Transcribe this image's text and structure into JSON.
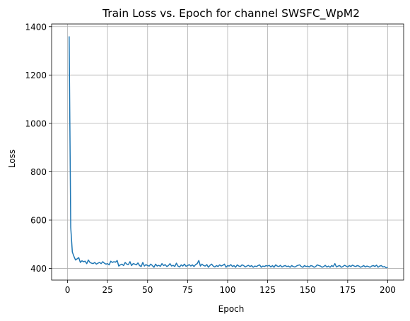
{
  "chart_data": {
    "type": "line",
    "title": "Train Loss vs. Epoch for channel SWSFC_WpM2",
    "xlabel": "Epoch",
    "ylabel": "Loss",
    "xlim": [
      -9.95,
      209.95
    ],
    "ylim": [
      352,
      1411
    ],
    "x_ticks": [
      0,
      25,
      50,
      75,
      100,
      125,
      150,
      175,
      200
    ],
    "y_ticks": [
      400,
      600,
      800,
      1000,
      1200,
      1400
    ],
    "grid": true,
    "series_color": "#1f77b4",
    "series": [
      {
        "x": [
          1,
          2,
          3,
          4,
          5,
          6,
          7,
          8,
          9,
          10,
          11,
          12,
          13,
          14,
          15,
          16,
          17,
          18,
          19,
          20,
          21,
          22,
          23,
          24,
          25,
          26,
          27,
          28,
          29,
          30,
          31,
          32,
          33,
          34,
          35,
          36,
          37,
          38,
          39,
          40,
          41,
          42,
          43,
          44,
          45,
          46,
          47,
          48,
          49,
          50,
          51,
          52,
          53,
          54,
          55,
          56,
          57,
          58,
          59,
          60,
          61,
          62,
          63,
          64,
          65,
          66,
          67,
          68,
          69,
          70,
          71,
          72,
          73,
          74,
          75,
          76,
          77,
          78,
          79,
          80,
          81,
          82,
          83,
          84,
          85,
          86,
          87,
          88,
          89,
          90,
          91,
          92,
          93,
          94,
          95,
          96,
          97,
          98,
          99,
          100,
          101,
          102,
          103,
          104,
          105,
          106,
          107,
          108,
          109,
          110,
          111,
          112,
          113,
          114,
          115,
          116,
          117,
          118,
          119,
          120,
          121,
          122,
          123,
          124,
          125,
          126,
          127,
          128,
          129,
          130,
          131,
          132,
          133,
          134,
          135,
          136,
          137,
          138,
          139,
          140,
          141,
          142,
          143,
          144,
          145,
          146,
          147,
          148,
          149,
          150,
          151,
          152,
          153,
          154,
          155,
          156,
          157,
          158,
          159,
          160,
          161,
          162,
          163,
          164,
          165,
          166,
          167,
          168,
          169,
          170,
          171,
          172,
          173,
          174,
          175,
          176,
          177,
          178,
          179,
          180,
          181,
          182,
          183,
          184,
          185,
          186,
          187,
          188,
          189,
          190,
          191,
          192,
          193,
          194,
          195,
          196,
          197,
          198,
          199,
          200
        ],
        "y": [
          1360,
          570,
          468,
          450,
          435,
          440,
          445,
          425,
          432,
          428,
          430,
          420,
          435,
          425,
          422,
          420,
          425,
          418,
          422,
          425,
          420,
          428,
          422,
          418,
          420,
          415,
          430,
          425,
          428,
          426,
          433,
          410,
          415,
          418,
          412,
          425,
          418,
          416,
          428,
          412,
          420,
          418,
          415,
          423,
          412,
          408,
          425,
          410,
          416,
          412,
          410,
          418,
          412,
          405,
          418,
          410,
          413,
          409,
          420,
          412,
          416,
          408,
          412,
          420,
          410,
          413,
          408,
          422,
          410,
          406,
          415,
          410,
          418,
          409,
          412,
          416,
          410,
          415,
          408,
          416,
          420,
          433,
          410,
          418,
          412,
          410,
          416,
          405,
          413,
          418,
          410,
          406,
          412,
          408,
          415,
          410,
          413,
          418,
          405,
          412,
          410,
          416,
          408,
          412,
          405,
          415,
          410,
          408,
          415,
          412,
          406,
          410,
          413,
          408,
          412,
          405,
          410,
          408,
          412,
          415,
          405,
          410,
          408,
          412,
          410,
          413,
          406,
          412,
          405,
          415,
          410,
          408,
          413,
          406,
          410,
          412,
          408,
          410,
          405,
          412,
          408,
          406,
          410,
          413,
          415,
          408,
          405,
          412,
          408,
          410,
          406,
          412,
          410,
          405,
          408,
          415,
          412,
          410,
          405,
          408,
          413,
          406,
          410,
          405,
          412,
          408,
          420,
          406,
          410,
          412,
          405,
          408,
          413,
          410,
          406,
          412,
          408,
          414,
          410,
          408,
          412,
          410,
          405,
          408,
          412,
          406,
          410,
          408,
          405,
          410,
          412,
          408,
          414,
          405,
          410,
          412,
          406,
          408,
          403,
          404
        ]
      }
    ]
  }
}
